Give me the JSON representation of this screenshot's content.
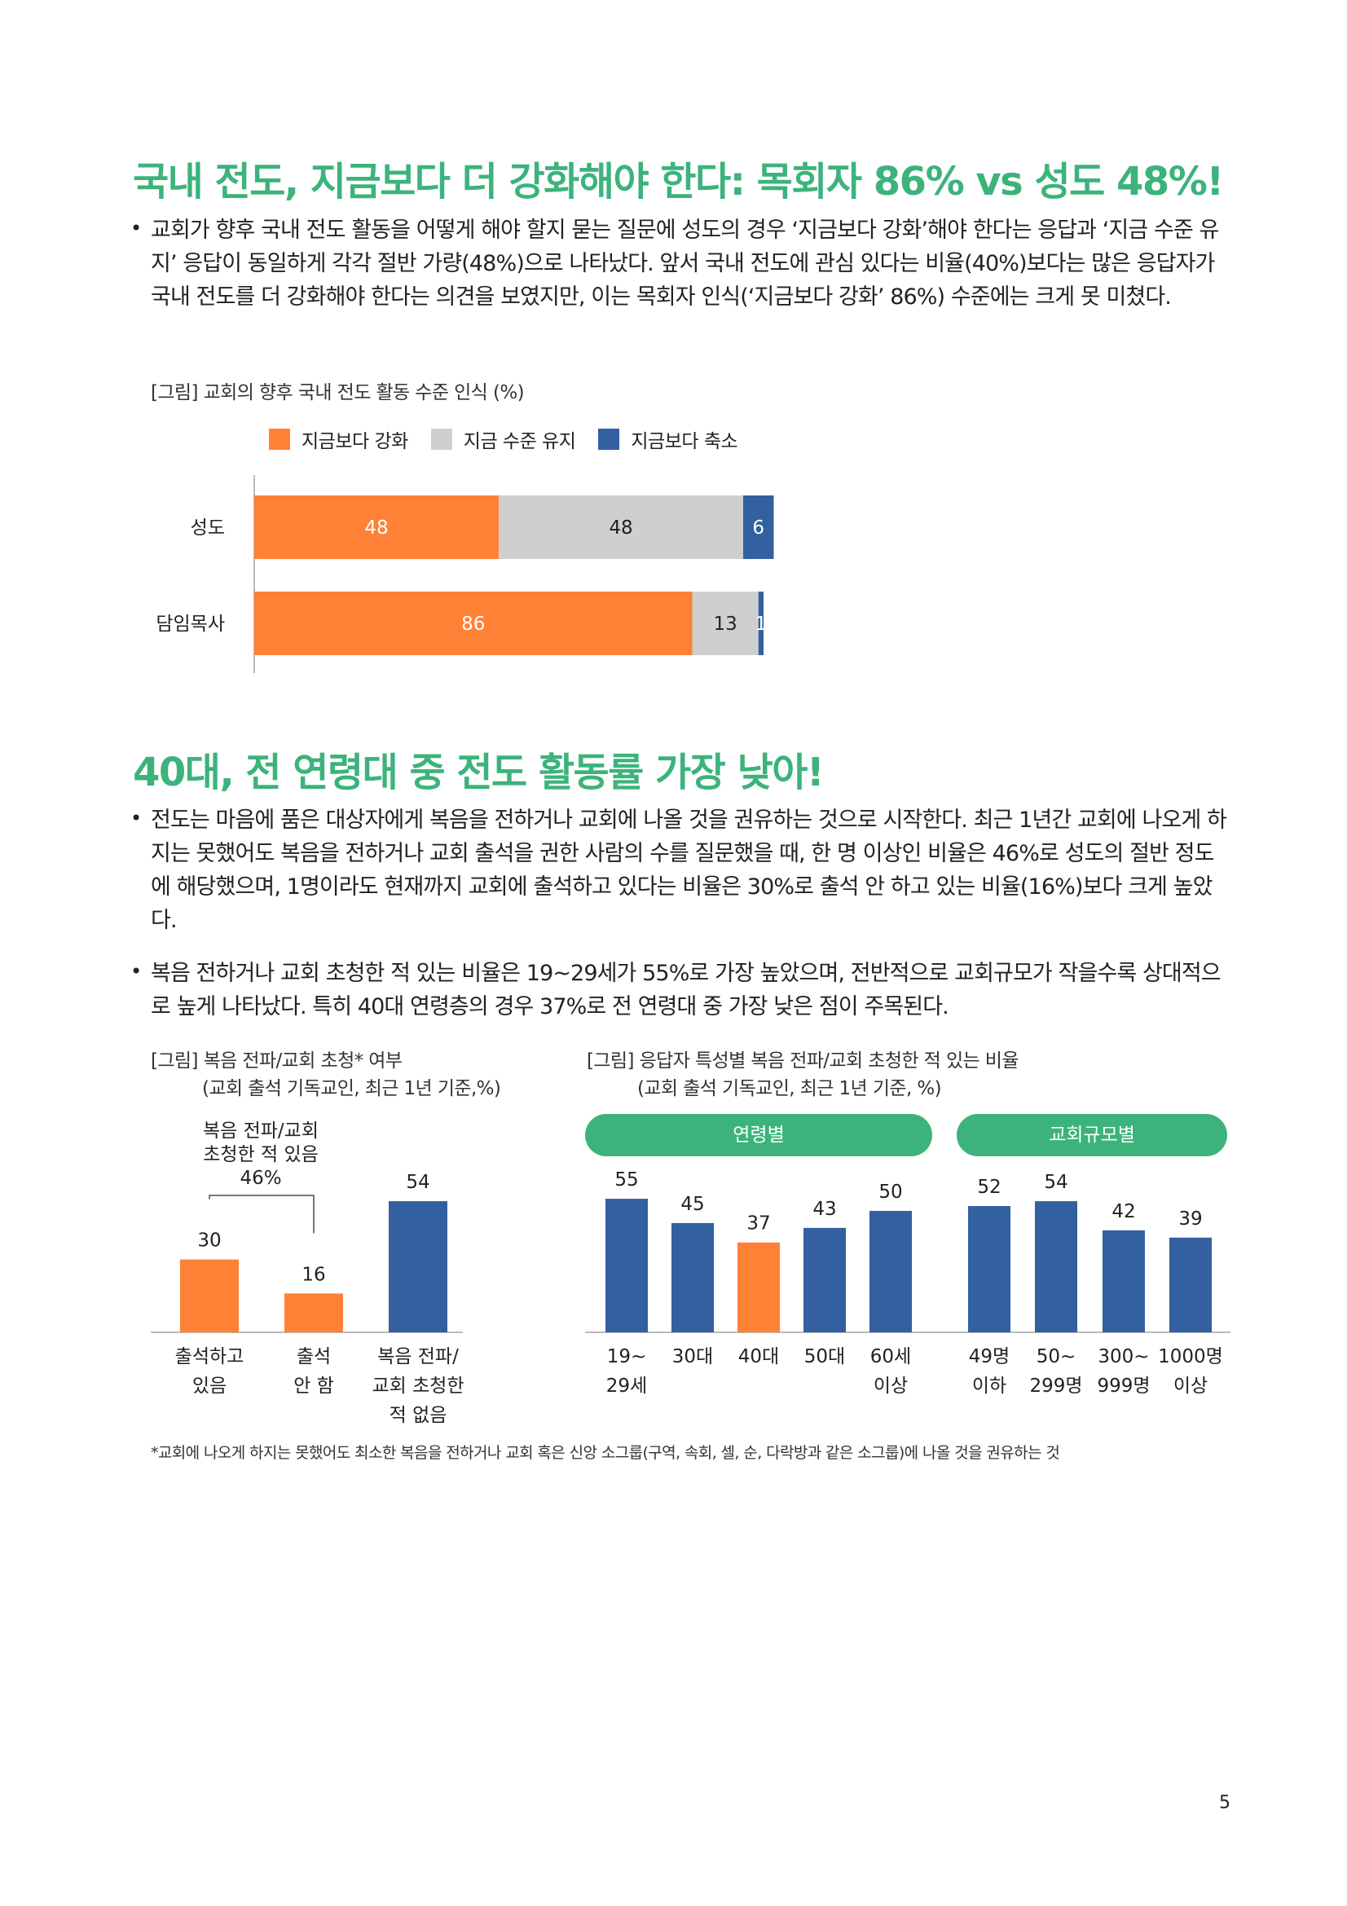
{
  "section1": {
    "title": "국내 전도, 지금보다 더 강화해야 한다: 목회자 86% vs 성도 48%!",
    "bullet1": "교회가 향후 국내 전도 활동을 어떻게 해야 할지 묻는 질문에 성도의 경우 ‘지금보다 강화’해야 한다는 응답과 ‘지금 수준 유지’ 응답이 동일하게 각각 절반 가량(48%)으로 나타났다. 앞서 국내 전도에 관심 있다는 비율(40%)보다는 많은 응답자가 국내 전도를 더 강화해야 한다는 의견을 보였지만, 이는 목회자 인식(‘지금보다 강화’ 86%) 수준에는 크게 못 미쳤다.",
    "chart_caption": "[그림] 교회의 향후 국내 전도 활동 수준 인식 (%)"
  },
  "section2": {
    "title": "40대, 전 연령대 중 전도 활동률 가장 낮아!",
    "bullet1": "전도는 마음에 품은 대상자에게 복음을 전하거나 교회에 나올 것을 권유하는 것으로 시작한다. 최근 1년간 교회에 나오게 하지는 못했어도 복음을 전하거나 교회 출석을 권한 사람의 수를 질문했을 때, 한 명 이상인 비율은 46%로 성도의 절반 정도에 해당했으며, 1명이라도 현재까지 교회에 출석하고 있다는 비율은 30%로 출석 안 하고 있는 비율(16%)보다 크게 높았다.",
    "bullet2": "복음 전하거나 교회 초청한 적 있는 비율은 19~29세가 55%로 가장 높았으며, 전반적으로 교회규모가 작을수록 상대적으로 높게 나타났다. 특히 40대 연령층의 경우 37%로 전 연령대 중 가장 낮은 점이 주목된다.",
    "left_caption_1": "[그림] 복음 전파/교회 초청* 여부",
    "left_caption_2": "(교회 출석 기독교인, 최근 1년 기준,%)",
    "right_caption_1": "[그림] 응답자 특성별 복음 전파/교회 초청한 적 있는 비율",
    "right_caption_2": "(교회 출석 기독교인, 최근 1년 기준, %)",
    "bracket_label_1": "복음 전파/교회",
    "bracket_label_2": "초청한 적 있음",
    "bracket_value": "46%",
    "pill_age": "연령별",
    "pill_size": "교회규모별"
  },
  "footnote": "*교회에 나오게 하지는 못했어도 최소한 복음을 전하거나 교회 혹은 신앙 소그룹(구역, 속회, 셀, 순, 다락방과 같은 소그룹)에 나올 것을 권유하는 것",
  "page_number": "5",
  "colors": {
    "orange": "#fe8136",
    "gray": "#cfcfcf",
    "blue": "#33609e",
    "green": "#3cb37b"
  },
  "chart_data": [
    {
      "type": "bar",
      "orientation": "horizontal",
      "stacked": true,
      "title": "[그림] 교회의 향후 국내 전도 활동 수준 인식 (%)",
      "categories": [
        "성도",
        "담임목사"
      ],
      "series": [
        {
          "name": "지금보다 강화",
          "values": [
            48,
            86
          ],
          "color": "#fe8136"
        },
        {
          "name": "지금 수준 유지",
          "values": [
            48,
            13
          ],
          "color": "#cfcfcf"
        },
        {
          "name": "지금보다 축소",
          "values": [
            6,
            1
          ],
          "color": "#33609e"
        }
      ],
      "legend": "top"
    },
    {
      "type": "bar",
      "title": "[그림] 복음 전파/교회 초청* 여부",
      "categories": [
        [
          "출석하고",
          "있음"
        ],
        [
          "출석",
          "안 함"
        ],
        [
          "복음 전파/",
          "교회 초청한",
          "적 없음"
        ]
      ],
      "values": [
        30,
        16,
        54
      ],
      "colors": [
        "#fe8136",
        "#fe8136",
        "#33609e"
      ],
      "ylim": [
        0,
        70
      ]
    },
    {
      "type": "bar",
      "title": "[그림] 응답자 특성별 복음 전파/교회 초청한 적 있는 비율",
      "groups": [
        {
          "name": "연령별",
          "categories": [
            [
              "19~",
              "29세"
            ],
            [
              "30대"
            ],
            [
              "40대"
            ],
            [
              "50대"
            ],
            [
              "60세",
              "이상"
            ]
          ],
          "values": [
            55,
            45,
            37,
            43,
            50
          ],
          "colors": [
            "#33609e",
            "#33609e",
            "#fe8136",
            "#33609e",
            "#33609e"
          ]
        },
        {
          "name": "교회규모별",
          "categories": [
            [
              "49명",
              "이하"
            ],
            [
              "50~",
              "299명"
            ],
            [
              "300~",
              "999명"
            ],
            [
              "1000명",
              "이상"
            ]
          ],
          "values": [
            52,
            54,
            42,
            39
          ],
          "colors": [
            "#33609e",
            "#33609e",
            "#33609e",
            "#33609e"
          ]
        }
      ],
      "ylim": [
        0,
        70
      ]
    }
  ]
}
